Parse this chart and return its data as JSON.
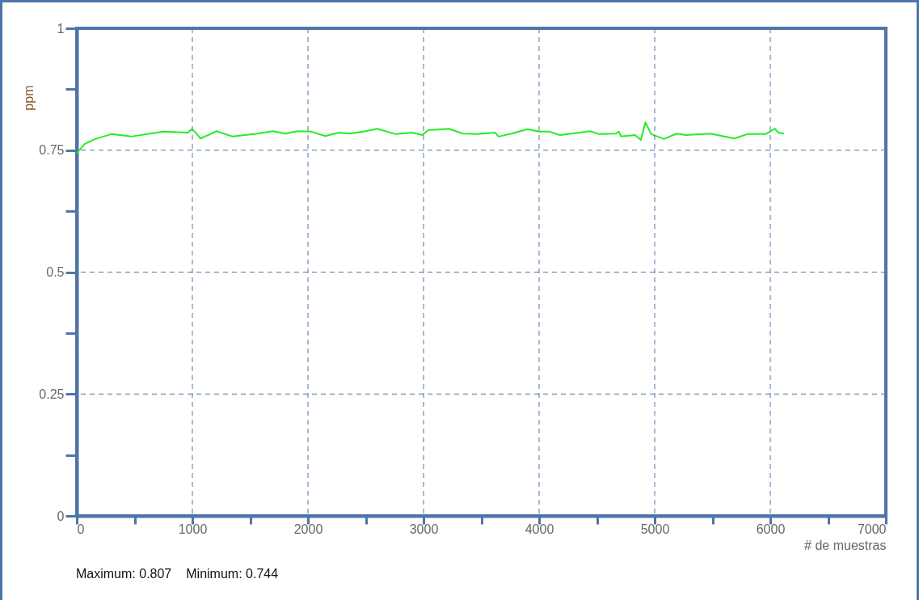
{
  "chart_data": {
    "type": "line",
    "xlabel": "# de muestras",
    "ylabel": "ppm",
    "xlim": [
      0,
      7000
    ],
    "ylim": [
      0,
      1
    ],
    "xticks": [
      0,
      {
        "value": 500,
        "label": null
      },
      1000,
      {
        "value": 1500,
        "label": null
      },
      2000,
      {
        "value": 2500,
        "label": null
      },
      3000,
      {
        "value": 3500,
        "label": null
      },
      4000,
      {
        "value": 4500,
        "label": null
      },
      5000,
      {
        "value": 5500,
        "label": null
      },
      6000,
      {
        "value": 6500,
        "label": null
      },
      7000
    ],
    "yticks": [
      0,
      {
        "value": 0.125,
        "label": null
      },
      0.25,
      {
        "value": 0.375,
        "label": null
      },
      0.5,
      {
        "value": 0.625,
        "label": null
      },
      0.75,
      {
        "value": 0.875,
        "label": null
      },
      1
    ],
    "grid": true,
    "marker": "none",
    "line_style": "solid",
    "annotations": [
      "Maximum: 0.807",
      "Minimum: 0.744"
    ],
    "x": [
      0,
      70,
      160,
      300,
      470,
      750,
      960,
      995,
      1030,
      1070,
      1210,
      1350,
      1560,
      1700,
      1800,
      1910,
      2030,
      2150,
      2270,
      2360,
      2500,
      2600,
      2760,
      2900,
      2990,
      3040,
      3220,
      3340,
      3460,
      3620,
      3650,
      3760,
      3900,
      4000,
      4090,
      4180,
      4350,
      4440,
      4520,
      4660,
      4690,
      4710,
      4830,
      4880,
      4920,
      4970,
      5080,
      5190,
      5270,
      5480,
      5690,
      5800,
      5960,
      6040,
      6070,
      6120
    ],
    "series": [
      {
        "color": "#22ee22",
        "values": [
          0.744,
          0.763,
          0.773,
          0.783,
          0.778,
          0.788,
          0.786,
          0.793,
          0.786,
          0.774,
          0.789,
          0.778,
          0.784,
          0.789,
          0.784,
          0.789,
          0.788,
          0.779,
          0.786,
          0.784,
          0.789,
          0.794,
          0.783,
          0.786,
          0.781,
          0.791,
          0.794,
          0.784,
          0.783,
          0.786,
          0.778,
          0.784,
          0.793,
          0.788,
          0.788,
          0.781,
          0.786,
          0.789,
          0.783,
          0.784,
          0.788,
          0.778,
          0.781,
          0.771,
          0.807,
          0.783,
          0.773,
          0.784,
          0.781,
          0.784,
          0.774,
          0.783,
          0.783,
          0.794,
          0.786,
          0.784
        ]
      }
    ]
  }
}
